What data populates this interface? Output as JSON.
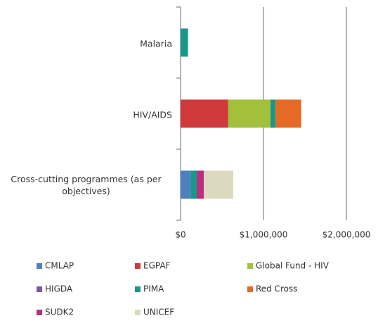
{
  "chart_data": {
    "type": "stacked-barh",
    "categories": [
      "Malaria",
      "HIV/AIDS",
      "Cross-cutting programmes (as per objectives)"
    ],
    "series": [
      {
        "name": "CMLAP",
        "color": "#4f7fbf",
        "values": [
          0,
          0,
          120000
        ]
      },
      {
        "name": "EGPAF",
        "color": "#d0393b",
        "values": [
          0,
          575000,
          0
        ]
      },
      {
        "name": "Global Fund - HIV",
        "color": "#a2c03c",
        "values": [
          0,
          510000,
          0
        ]
      },
      {
        "name": "HIGDA",
        "color": "#7b5aa0",
        "values": [
          0,
          0,
          0
        ]
      },
      {
        "name": "PIMA",
        "color": "#16998a",
        "values": [
          90000,
          60000,
          75000
        ]
      },
      {
        "name": "Red Cross",
        "color": "#e46a26",
        "values": [
          0,
          310000,
          0
        ]
      },
      {
        "name": "SUDK2",
        "color": "#b9307c",
        "values": [
          0,
          0,
          85000
        ]
      },
      {
        "name": "UNICEF",
        "color": "#ddd8c0",
        "values": [
          0,
          0,
          355000
        ]
      }
    ],
    "xlim": [
      0,
      2000000
    ],
    "xticks": [
      {
        "value": 0,
        "label": "$0"
      },
      {
        "value": 1000000,
        "label": "$1,000,000"
      },
      {
        "value": 2000000,
        "label": "$2,000,000"
      }
    ],
    "grid": true
  }
}
